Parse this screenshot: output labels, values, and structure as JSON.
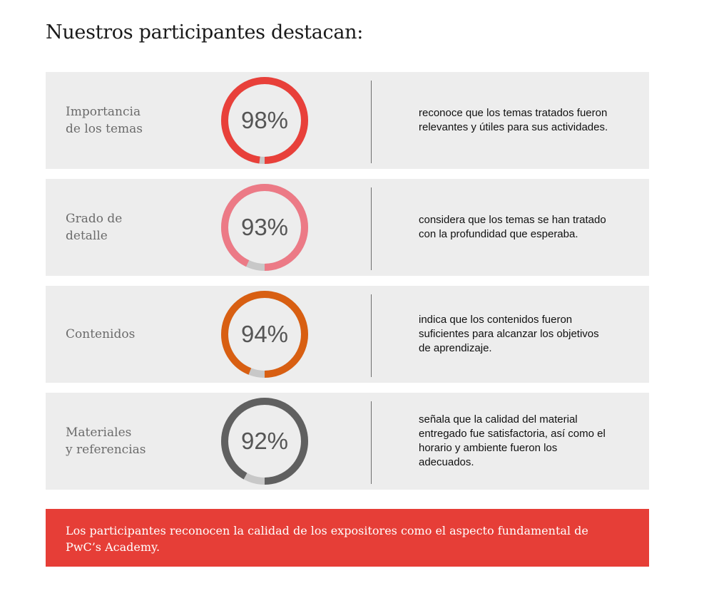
{
  "title": "Nuestros participantes destacan:",
  "rows": [
    {
      "label": "Importancia\nde los temas",
      "value": "98%",
      "percent": 98,
      "color": "#e8403a",
      "description": "reconoce que los temas tratados fueron relevantes y útiles para sus actividades."
    },
    {
      "label": "Grado de\ndetalle",
      "value": "93%",
      "percent": 93,
      "color": "#ec7a86",
      "description": "considera que los temas se han tratado con la profundidad que esperaba."
    },
    {
      "label": "Contenidos",
      "value": "94%",
      "percent": 94,
      "color": "#d85f12",
      "description": "indica que los contenidos fueron suficientes para alcanzar los objetivos de aprendizaje."
    },
    {
      "label": "Materiales\ny referencias",
      "value": "92%",
      "percent": 92,
      "color": "#606060",
      "description": "señala que la calidad del material entregado fue satisfactoria, así como el horario y ambiente fueron los adecuados."
    }
  ],
  "track_color": "#c8c8c8",
  "banner": {
    "text": "Los participantes reconocen la calidad de los expositores como el aspecto fundamental de PwC’s Academy.",
    "color": "#e63e37"
  }
}
